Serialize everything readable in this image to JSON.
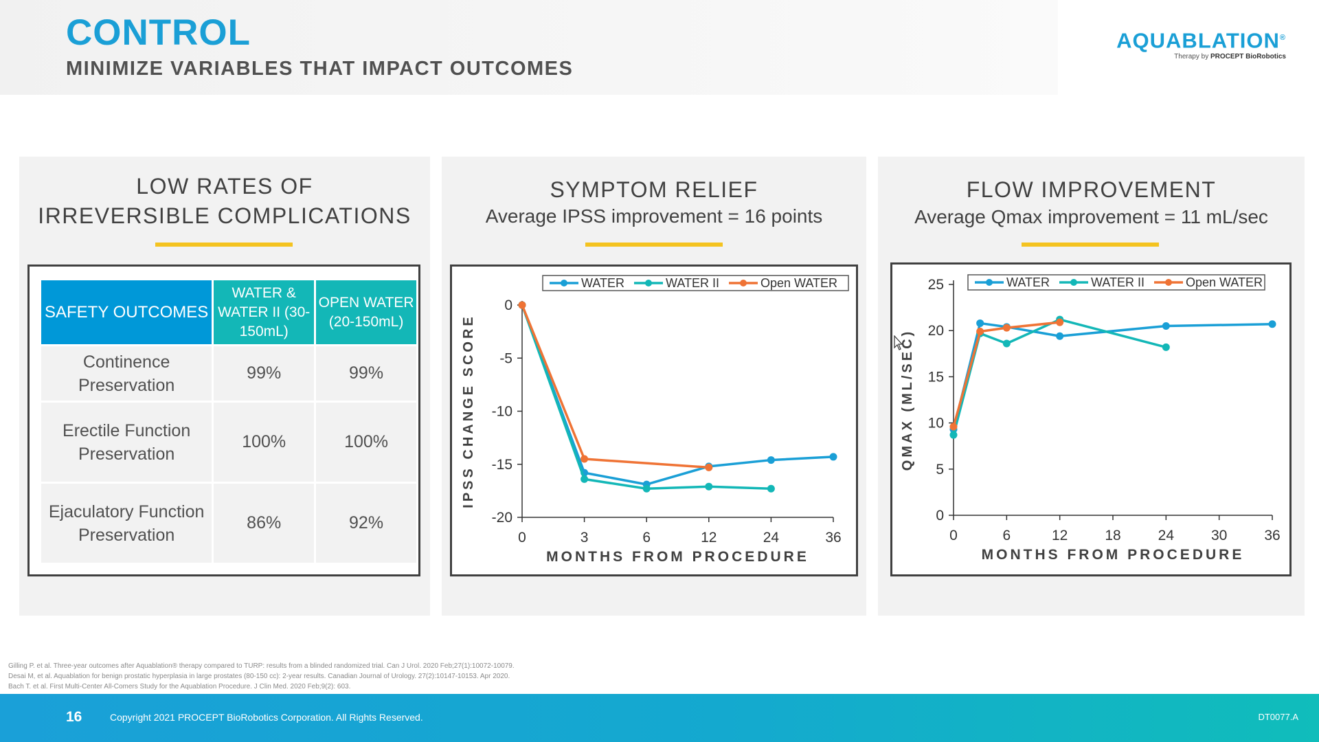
{
  "header": {
    "title": "CONTROL",
    "subtitle": "MINIMIZE VARIABLES THAT IMPACT OUTCOMES",
    "logo_text": "AQUABLATION",
    "logo_mark": "®",
    "logo_tagline_prefix": "Therapy by",
    "logo_tagline_brand": "PROCEPT BioRobotics"
  },
  "colors": {
    "brand_blue": "#1a9fd6",
    "teal": "#13b7b7",
    "orange": "#ef7335",
    "accent_yellow": "#f4c320"
  },
  "panels": {
    "complications": {
      "title_line1": "LOW RATES OF",
      "title_line2": "IRREVERSIBLE COMPLICATIONS",
      "table": {
        "header_col0": "SAFETY OUTCOMES",
        "header_col1": "WATER & WATER II (30-150mL)",
        "header_col2": "OPEN WATER (20-150mL)",
        "rows": [
          {
            "label": "Continence Preservation",
            "water": "99%",
            "open_water": "99%"
          },
          {
            "label": "Erectile Function Preservation",
            "water": "100%",
            "open_water": "100%"
          },
          {
            "label": "Ejaculatory Function Preservation",
            "water": "86%",
            "open_water": "92%"
          }
        ]
      }
    },
    "symptom": {
      "title": "SYMPTOM RELIEF",
      "subtitle_prefix": "Average IPSS improvement = ",
      "subtitle_value": "16 points"
    },
    "flow": {
      "title": "FLOW IMPROVEMENT",
      "subtitle_prefix": "Average Qmax improvement = ",
      "subtitle_value": "11 mL/sec"
    }
  },
  "chart_data": [
    {
      "type": "line",
      "xlabel": "MONTHS FROM PROCEDURE",
      "ylabel": "IPSS CHANGE SCORE",
      "categories": [
        "0",
        "3",
        "6",
        "12",
        "24",
        "36"
      ],
      "ylim": [
        -20,
        0
      ],
      "yticks": [
        0,
        -5,
        -10,
        -15,
        -20
      ],
      "legend": "top",
      "grid": false,
      "series": [
        {
          "name": "WATER",
          "color": "#1a9fd6",
          "values": [
            0,
            -15.8,
            -16.9,
            -15.2,
            -14.6,
            -14.3
          ]
        },
        {
          "name": "WATER II",
          "color": "#13b7b7",
          "values": [
            0,
            -16.4,
            -17.3,
            -17.1,
            -17.3,
            null
          ]
        },
        {
          "name": "Open WATER",
          "color": "#ef7335",
          "values": [
            0,
            -14.5,
            null,
            -15.3,
            null,
            null
          ]
        }
      ]
    },
    {
      "type": "line",
      "xlabel": "MONTHS FROM PROCEDURE",
      "ylabel": "QMAX (ML/SEC)",
      "xlim": [
        0,
        36
      ],
      "xticks": [
        0,
        6,
        12,
        18,
        24,
        30,
        36
      ],
      "ylim": [
        0,
        25
      ],
      "yticks": [
        0,
        5,
        10,
        15,
        20,
        25
      ],
      "legend": "top",
      "grid": false,
      "series": [
        {
          "name": "WATER",
          "color": "#1a9fd6",
          "x": [
            0,
            3,
            6,
            12,
            24,
            36
          ],
          "values": [
            9.3,
            20.8,
            20.4,
            19.4,
            20.5,
            20.7
          ]
        },
        {
          "name": "WATER II",
          "color": "#13b7b7",
          "x": [
            0,
            3,
            6,
            12,
            24
          ],
          "values": [
            8.7,
            19.7,
            18.6,
            21.2,
            18.2
          ]
        },
        {
          "name": "Open WATER",
          "color": "#ef7335",
          "x": [
            0,
            3,
            6,
            12
          ],
          "values": [
            9.6,
            19.9,
            20.3,
            20.9
          ]
        }
      ]
    }
  ],
  "references": [
    "Gilling P. et al. Three-year outcomes after Aquablation® therapy compared to TURP: results from a blinded randomized trial. Can J Urol. 2020 Feb;27(1):10072-10079.",
    "Desai M, et al. Aquablation for benign prostatic hyperplasia in large prostates (80-150 cc): 2-year results. Canadian Journal of Urology. 27(2):10147-10153. Apr 2020.",
    "Bach T. et al. First Multi-Center All-Comers Study for the Aquablation Procedure. J Clin Med. 2020 Feb;9(2): 603."
  ],
  "footer": {
    "page_number": "16",
    "copyright": "Copyright 2021 PROCEPT BioRobotics Corporation. All Rights Reserved.",
    "doc_code": "DT0077.A"
  }
}
